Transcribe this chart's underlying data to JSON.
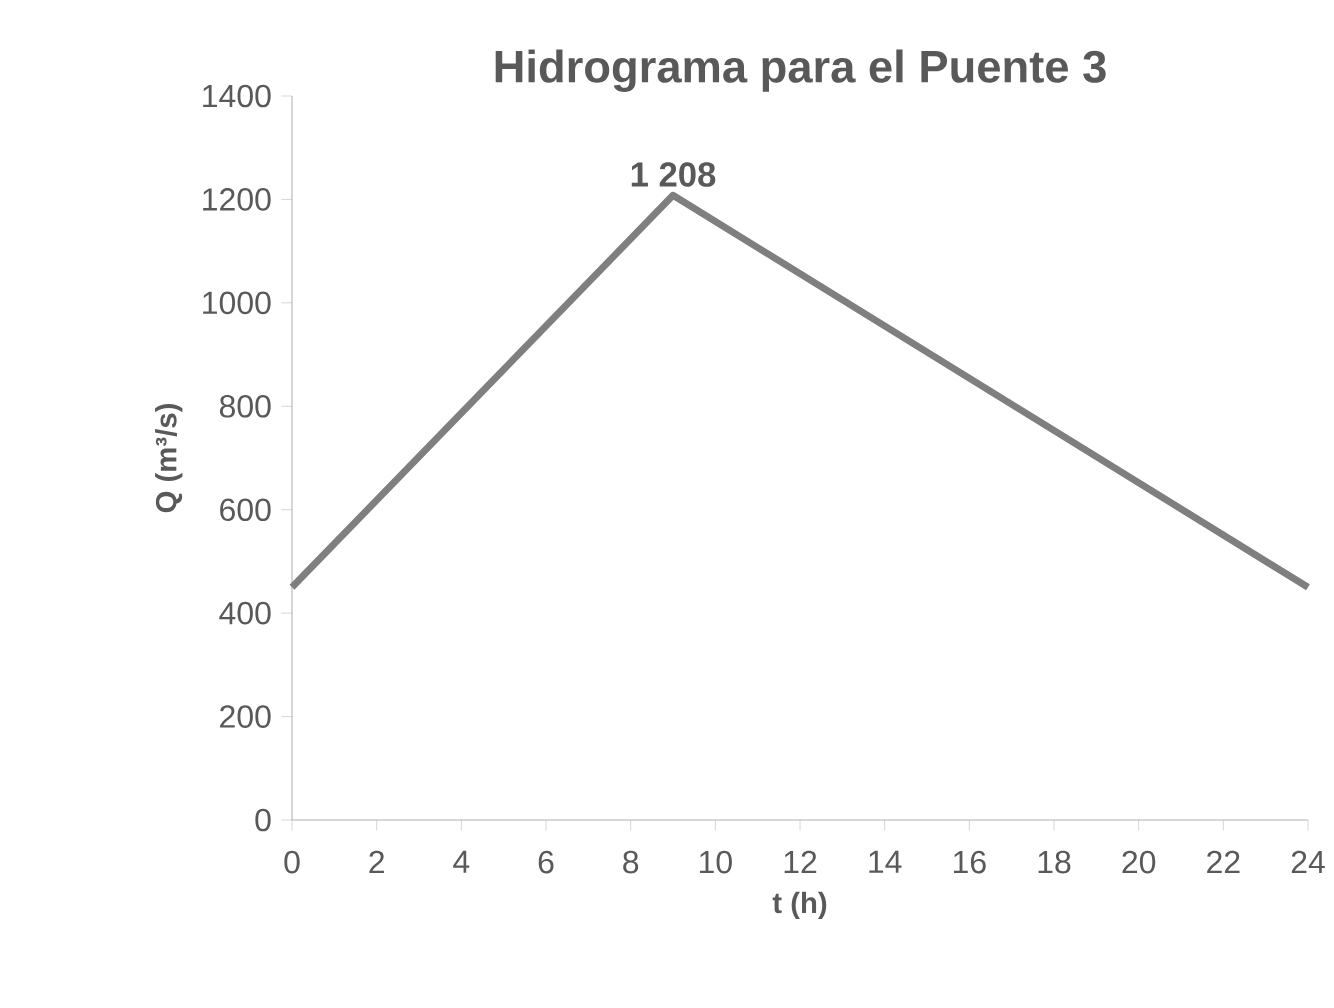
{
  "chart_data": {
    "type": "line",
    "title": "Hidrograma para el Puente 3",
    "xlabel": "t (h)",
    "ylabel": "Q  (m³/s)",
    "x": [
      0,
      9,
      24
    ],
    "values": [
      450,
      1208,
      450
    ],
    "color": "#7f7f7f",
    "marker": "none",
    "xlim": [
      0,
      24
    ],
    "xticks": [
      0,
      2,
      4,
      6,
      8,
      10,
      12,
      14,
      16,
      18,
      20,
      22,
      24
    ],
    "ylim": [
      0,
      1400
    ],
    "yticks": [
      0,
      200,
      400,
      600,
      800,
      1000,
      1200,
      1400
    ],
    "annotations": [
      {
        "text": "1 208",
        "x": 9,
        "y": 1208
      }
    ]
  }
}
